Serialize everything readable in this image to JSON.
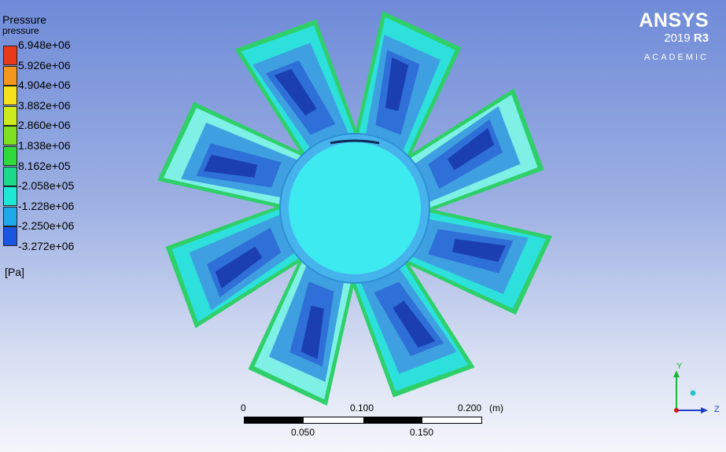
{
  "legend": {
    "title": "Pressure",
    "variable": "pressure",
    "unit": "[Pa]",
    "ticks": [
      "6.948e+06",
      "5.926e+06",
      "4.904e+06",
      "3.882e+06",
      "2.860e+06",
      "1.838e+06",
      "8.162e+05",
      "-2.058e+05",
      "-1.228e+06",
      "-2.250e+06",
      "-3.272e+06"
    ],
    "colors": [
      "#e8391a",
      "#f6971d",
      "#f4e21d",
      "#cdea1f",
      "#7ee020",
      "#2fd93b",
      "#1dd98c",
      "#1ee8d3",
      "#1fa9ea",
      "#1b56e0"
    ]
  },
  "logo": {
    "brand": "ANSYS",
    "version": "2019",
    "release": "R3",
    "edition": "ACADEMIC"
  },
  "scale": {
    "labels_top": [
      "0",
      "0.100",
      "0.200"
    ],
    "unit": "(m)",
    "labels_bottom": [
      "0.050",
      "0.150"
    ]
  },
  "axes": {
    "y": "Y",
    "z": "Z"
  },
  "colors": {
    "low": "#1b3fb0",
    "deep": "#2f6fd8",
    "mid": "#3ea0e0",
    "cyan": "#2de0dc",
    "cyan_light": "#7ff0e6",
    "hub": "#4fb8ee",
    "hub_center": "#3feaf0",
    "green": "#2fcf6a"
  }
}
